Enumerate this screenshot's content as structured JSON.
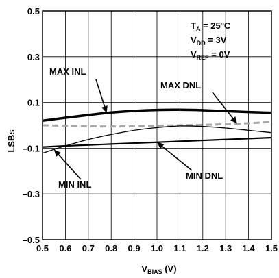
{
  "chart_data": {
    "type": "line",
    "xlabel": {
      "main": "V",
      "sub": "BIAS",
      "unit": " (V)"
    },
    "ylabel": "LSBs",
    "xlim": [
      0.5,
      1.5
    ],
    "ylim": [
      -0.5,
      0.5
    ],
    "xticks": [
      0.5,
      0.6,
      0.7,
      0.8,
      0.9,
      1.0,
      1.1,
      1.2,
      1.3,
      1.4,
      1.5
    ],
    "xtick_labels": [
      "0.5",
      "0.6",
      "0.7",
      "0.8",
      "0.9",
      "1.0",
      "1.1",
      "1.2",
      "1.3",
      "1.4",
      "1.5"
    ],
    "yticks": [
      0.5,
      0.3,
      0.1,
      -0.1,
      -0.3,
      -0.5
    ],
    "ytick_labels": [
      "0.5",
      "0.3",
      "0.1",
      "–0.1",
      "–0.3",
      "–0.5"
    ],
    "grid": true,
    "conditions": [
      {
        "main": "T",
        "sub": "A",
        "rest": " = 25°C"
      },
      {
        "main": "V",
        "sub": "DD",
        "rest": " = 3V"
      },
      {
        "main": "V",
        "sub": "REF",
        "rest": " = 0V"
      }
    ],
    "series": [
      {
        "name": "MAX INL",
        "style": "thick",
        "color": "#000000",
        "x": [
          0.5,
          0.6,
          0.7,
          0.8,
          0.9,
          1.0,
          1.1,
          1.2,
          1.3,
          1.4,
          1.5
        ],
        "y": [
          0.02,
          0.033,
          0.045,
          0.056,
          0.063,
          0.067,
          0.068,
          0.066,
          0.062,
          0.058,
          0.055
        ]
      },
      {
        "name": "MAX DNL",
        "style": "dashed",
        "color": "#a8a8a8",
        "x": [
          0.5,
          0.6,
          0.7,
          0.8,
          0.9,
          1.0,
          1.1,
          1.2,
          1.3,
          1.4,
          1.5
        ],
        "y": [
          0.0,
          -0.002,
          -0.004,
          -0.005,
          -0.004,
          -0.002,
          0.0,
          0.002,
          0.005,
          0.009,
          0.015
        ]
      },
      {
        "name": "MIN INL",
        "style": "thin",
        "color": "#000000",
        "x": [
          0.5,
          0.6,
          0.7,
          0.8,
          0.9,
          1.0,
          1.1,
          1.2,
          1.3,
          1.4,
          1.5
        ],
        "y": [
          -0.122,
          -0.09,
          -0.062,
          -0.04,
          -0.022,
          -0.01,
          -0.003,
          -0.005,
          -0.012,
          -0.022,
          -0.032
        ]
      },
      {
        "name": "MIN DNL",
        "style": "medium",
        "color": "#000000",
        "x": [
          0.5,
          0.6,
          0.7,
          0.8,
          0.9,
          1.0,
          1.1,
          1.2,
          1.3,
          1.4,
          1.5
        ],
        "y": [
          -0.095,
          -0.09,
          -0.086,
          -0.082,
          -0.078,
          -0.074,
          -0.07,
          -0.066,
          -0.062,
          -0.058,
          -0.054
        ]
      }
    ],
    "annotations": [
      {
        "label": "MAX INL",
        "series": "MAX INL",
        "x": 0.78
      },
      {
        "label": "MAX DNL",
        "series": "MAX DNL",
        "x": 1.35
      },
      {
        "label": "MIN INL",
        "series": "MIN INL",
        "x": 0.55
      },
      {
        "label": "MIN DNL",
        "series": "MIN DNL",
        "x": 1.0
      }
    ]
  }
}
